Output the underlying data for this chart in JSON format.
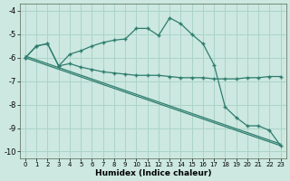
{
  "xlabel": "Humidex (Indice chaleur)",
  "bg_color": "#cce8e0",
  "grid_color": "#aad4c8",
  "line_color": "#2e7d6e",
  "xlim": [
    -0.5,
    23.5
  ],
  "ylim": [
    -10.3,
    -3.7
  ],
  "xticks": [
    0,
    1,
    2,
    3,
    4,
    5,
    6,
    7,
    8,
    9,
    10,
    11,
    12,
    13,
    14,
    15,
    16,
    17,
    18,
    19,
    20,
    21,
    22,
    23
  ],
  "yticks": [
    -10,
    -9,
    -8,
    -7,
    -6,
    -5,
    -4
  ],
  "series1_x": [
    0,
    1,
    2,
    3,
    4,
    5,
    6,
    7,
    8,
    9,
    10,
    11,
    12,
    13,
    14,
    15,
    16,
    17,
    18,
    19,
    20,
    21,
    22,
    23
  ],
  "series1_y": [
    -6.0,
    -5.5,
    -5.4,
    -6.35,
    -5.85,
    -5.7,
    -5.5,
    -5.35,
    -5.25,
    -5.2,
    -4.75,
    -4.75,
    -5.05,
    -4.3,
    -4.55,
    -5.0,
    -5.4,
    -6.3,
    -8.1,
    -8.55,
    -8.9,
    -8.9,
    -9.1,
    -9.75
  ],
  "series2_x": [
    0,
    1,
    2,
    3,
    4,
    5,
    6,
    7,
    8,
    9,
    10,
    11,
    12,
    13,
    14,
    15,
    16,
    17,
    18,
    19,
    20,
    21,
    22,
    23
  ],
  "series2_y": [
    -6.0,
    -5.5,
    -5.4,
    -6.35,
    -6.25,
    -6.4,
    -6.5,
    -6.6,
    -6.65,
    -6.7,
    -6.75,
    -6.75,
    -6.75,
    -6.8,
    -6.85,
    -6.85,
    -6.85,
    -6.9,
    -6.9,
    -6.9,
    -6.85,
    -6.85,
    -6.8,
    -6.8
  ],
  "series3_x": [
    0,
    23
  ],
  "series3_y": [
    -6.0,
    -9.75
  ],
  "series4_x": [
    0,
    23
  ],
  "series4_y": [
    -6.0,
    -9.75
  ]
}
